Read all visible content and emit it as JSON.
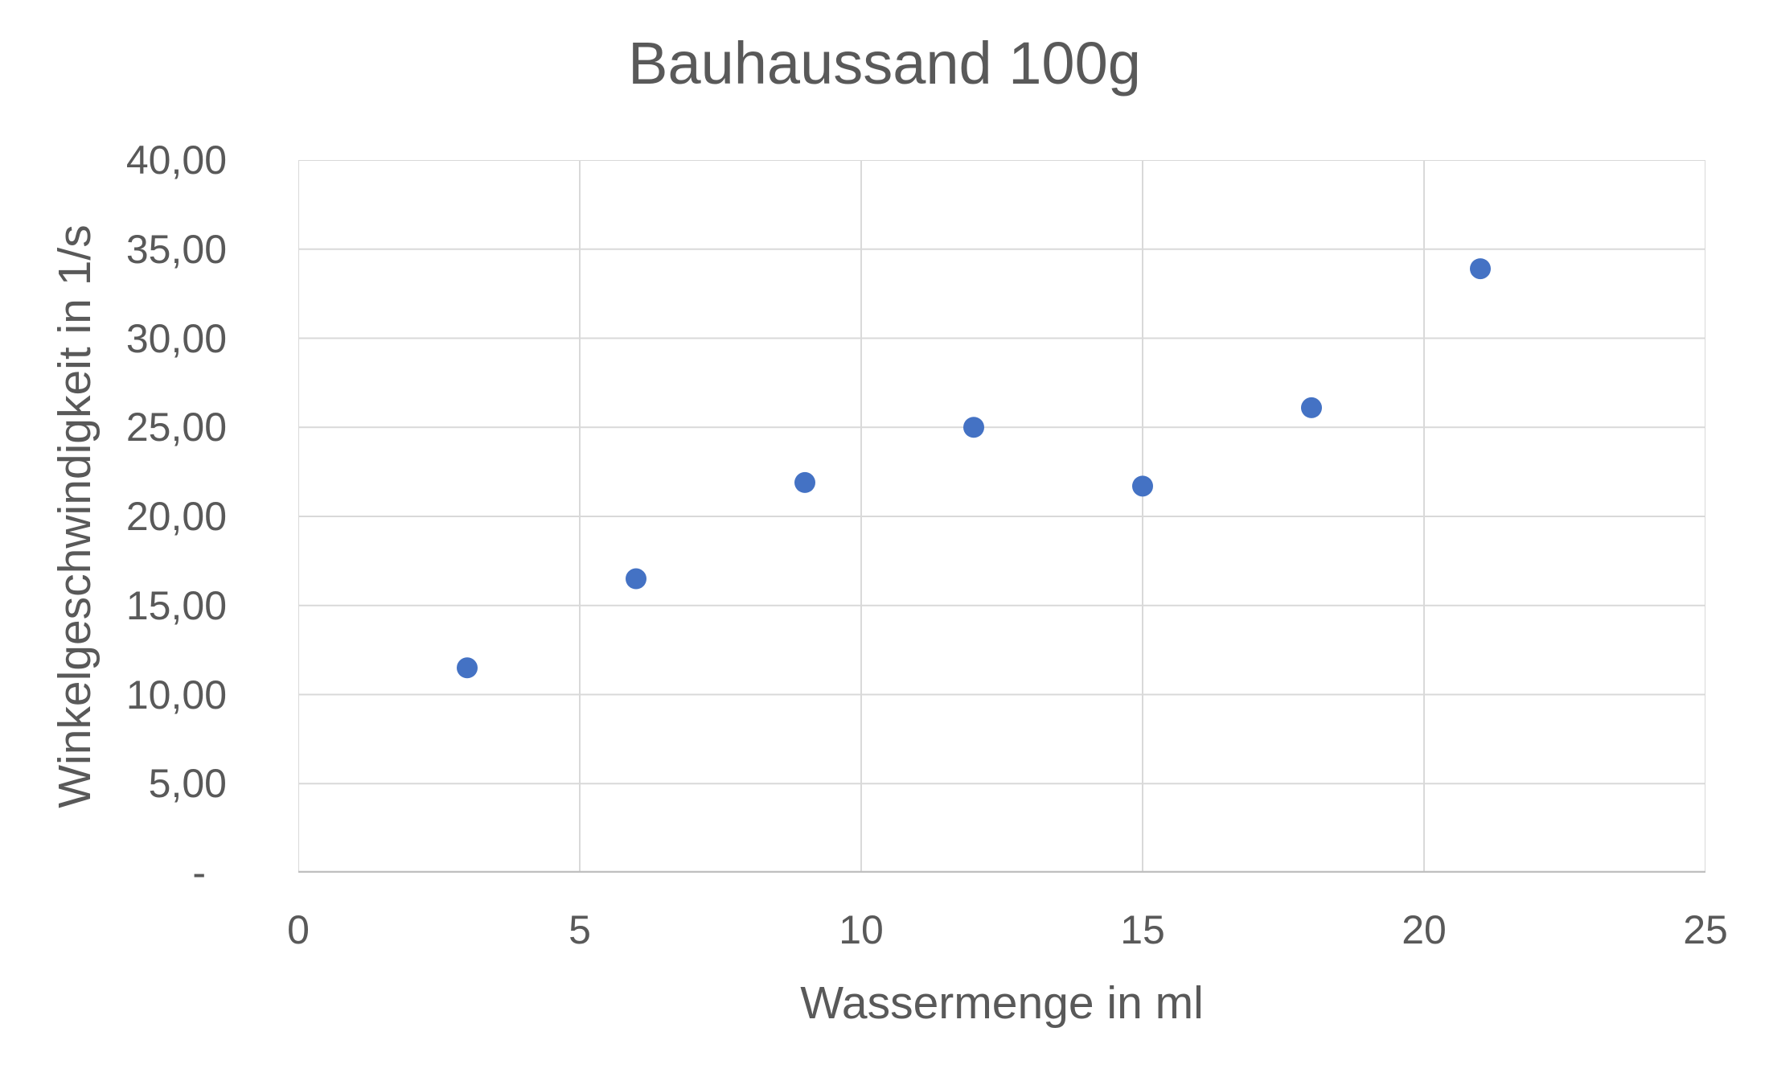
{
  "chart_data": {
    "type": "scatter",
    "title": "Bauhaussand 100g",
    "xlabel": "Wassermenge in ml",
    "ylabel": "Winkelgeschwindigkeit in 1/s",
    "series": [
      {
        "name": "Bauhaussand 100g",
        "x": [
          3,
          6,
          9,
          12,
          15,
          18,
          21
        ],
        "y": [
          11.5,
          16.5,
          21.9,
          25.0,
          21.7,
          26.1,
          33.9
        ]
      }
    ],
    "xlim": [
      0,
      25
    ],
    "ylim": [
      0,
      40
    ],
    "x_tick_values": [
      0,
      5,
      10,
      15,
      20,
      25
    ],
    "x_tick_labels": [
      "0",
      "5",
      "10",
      "15",
      "20",
      "25"
    ],
    "y_tick_values": [
      40,
      35,
      30,
      25,
      20,
      15,
      10,
      5,
      0
    ],
    "y_tick_labels": [
      "40,00",
      "35,00",
      "30,00",
      "25,00",
      "20,00",
      "15,00",
      "10,00",
      "5,00",
      "-"
    ],
    "grid": true,
    "legend": "none",
    "marker": {
      "shape": "circle",
      "radius_px": 13
    },
    "colors": {
      "marker": "#4472C4",
      "gridline": "#D9D9D9",
      "axis_line": "#BFBFBF",
      "text": "#595959",
      "background": "#FFFFFF"
    }
  }
}
